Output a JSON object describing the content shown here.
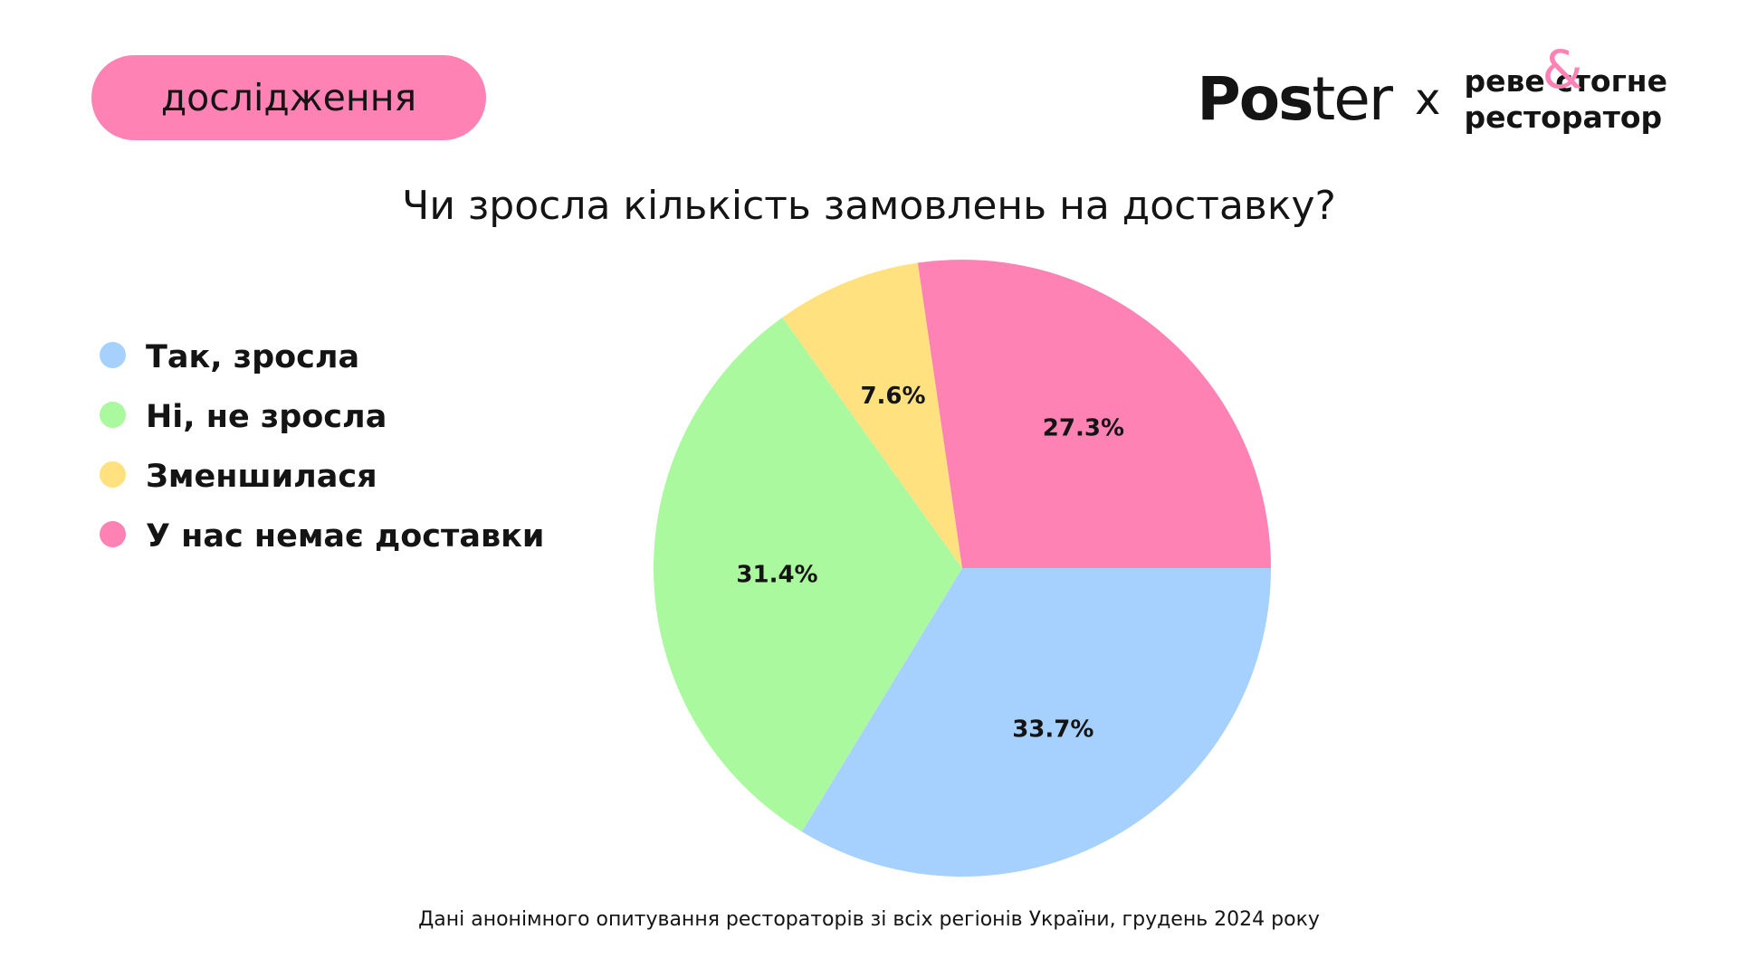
{
  "badge": {
    "label": "дослідження",
    "color": "#FF82B4"
  },
  "logos": {
    "poster_strong": "Pos",
    "poster_light": "ter",
    "separator": "x",
    "partner_line1": "реве стогне",
    "partner_line2": "ресторатор",
    "partner_ampersand": "&",
    "ampersand_color": "#FF82B4"
  },
  "chart_data": {
    "type": "pie",
    "title": "Чи зросла кількість замовлень на доставку?",
    "categories": [
      "Так, зросла",
      "Ні, не зросла",
      "Зменшилася",
      "У нас немає доставки"
    ],
    "values": [
      33.7,
      31.4,
      7.6,
      27.3
    ],
    "labels": [
      "33.7%",
      "31.4%",
      "7.6%",
      "27.3%"
    ],
    "colors": [
      "#A6D1FF",
      "#ABF99E",
      "#FFE27F",
      "#FF82B4"
    ],
    "start_angle_deg": 0,
    "direction": "clockwise",
    "legend_position": "left"
  },
  "footnote": "Дані анонімного опитування рестораторів зі всіх регіонів України, грудень 2024 року"
}
